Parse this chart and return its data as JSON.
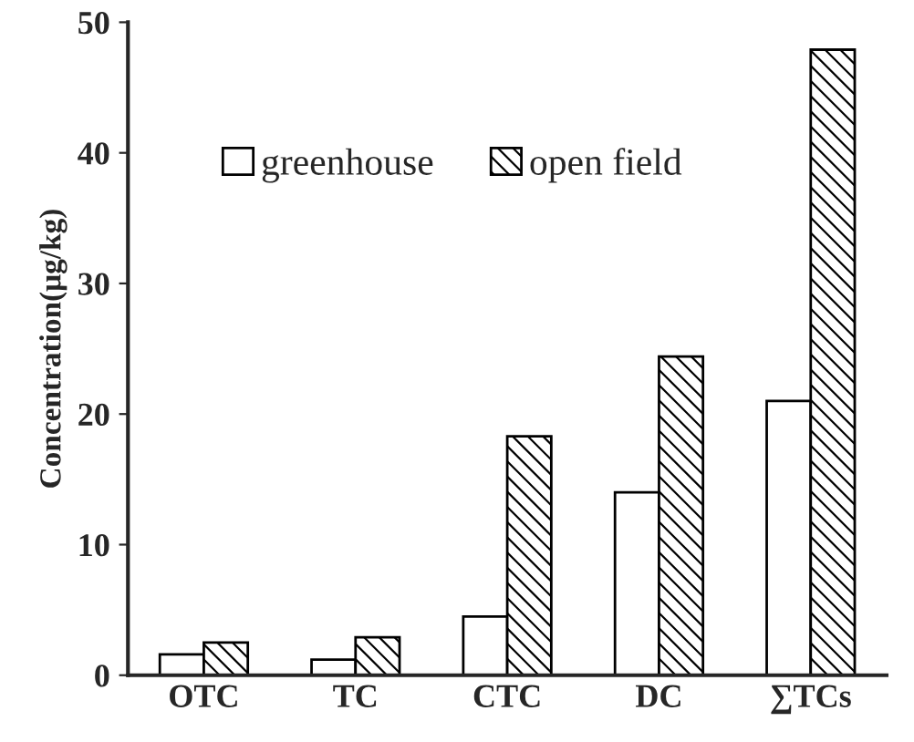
{
  "chart_data": {
    "type": "bar",
    "ylabel": "Concentration(μg/kg)",
    "categories": [
      "OTC",
      "TC",
      "CTC",
      "DC",
      "∑TCs"
    ],
    "series": [
      {
        "name": "greenhouse",
        "color": "#ffffff",
        "values": [
          1.6,
          1.2,
          4.5,
          14.0,
          21.0
        ]
      },
      {
        "name": "open field",
        "color": "#000000",
        "values": [
          2.5,
          2.9,
          18.3,
          24.4,
          47.9
        ]
      }
    ],
    "ylim": [
      0,
      50
    ],
    "yticks": [
      0,
      10,
      20,
      30,
      40,
      50
    ],
    "grid": false,
    "legend": "top left"
  }
}
